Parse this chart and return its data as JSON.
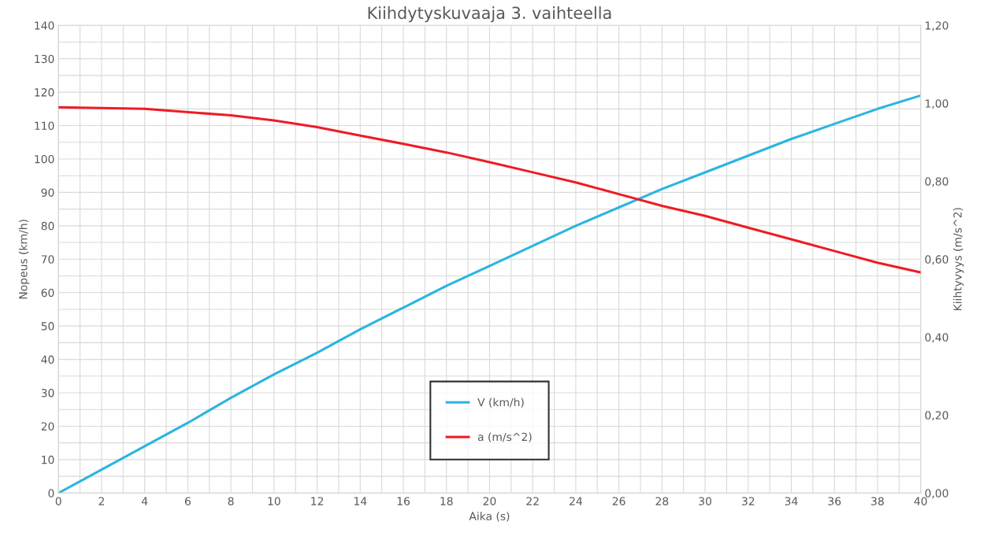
{
  "chart_data": {
    "type": "line",
    "title": "Kiihdytyskuvaaja 3. vaihteella",
    "xlabel": "Aika (s)",
    "ylabel": "Nopeus (km/h)",
    "y2label": "Kiihtyvyys (m/s^2)",
    "series": [
      {
        "name": "V (km/h)",
        "color": "#2bb5e0",
        "x": [
          0,
          2,
          4,
          6,
          8,
          10,
          12,
          14,
          16,
          18,
          20,
          22,
          24,
          26,
          28,
          30,
          32,
          34,
          36,
          38,
          40
        ],
        "values": [
          0,
          7,
          14,
          21,
          28.5,
          35.5,
          42,
          49,
          55.5,
          62,
          68,
          74,
          80,
          85.5,
          91,
          96,
          101,
          106,
          110.5,
          115,
          119
        ]
      },
      {
        "name": "a (m/s^2)",
        "color": "#ee1c25",
        "axis": "y2",
        "x": [
          0,
          4,
          8,
          10,
          12,
          14,
          16,
          18,
          20,
          22,
          24,
          26,
          28,
          30,
          32,
          34,
          36,
          38,
          40
        ],
        "values": [
          0.99,
          0.986,
          0.969,
          0.956,
          0.939,
          0.917,
          0.896,
          0.874,
          0.849,
          0.823,
          0.797,
          0.767,
          0.737,
          0.711,
          0.681,
          0.651,
          0.621,
          0.591,
          0.566
        ]
      }
    ],
    "xlim": [
      0,
      40
    ],
    "xticks": [
      0,
      2,
      4,
      6,
      8,
      10,
      12,
      14,
      16,
      18,
      20,
      22,
      24,
      26,
      28,
      30,
      32,
      34,
      36,
      38,
      40
    ],
    "ylim": [
      0,
      140
    ],
    "yticks": [
      0,
      10,
      20,
      30,
      40,
      50,
      60,
      70,
      80,
      90,
      100,
      110,
      120,
      130,
      140
    ],
    "y2lim": [
      0,
      1.2
    ],
    "y2ticks": [
      {
        "value": 0,
        "label": "0,00"
      },
      {
        "value": 0.2,
        "label": "0,20"
      },
      {
        "value": 0.4,
        "label": "0,40"
      },
      {
        "value": 0.6,
        "label": "0,60"
      },
      {
        "value": 0.8,
        "label": "0,80"
      },
      {
        "value": 1.0,
        "label": "1,00"
      },
      {
        "value": 1.2,
        "label": "1,20"
      }
    ],
    "grid": true,
    "legend": "bottom",
    "marker": "none",
    "line_style": "solid"
  }
}
